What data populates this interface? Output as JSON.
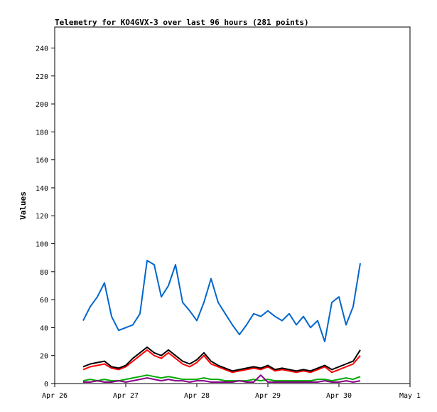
{
  "chart_data": {
    "type": "line",
    "title": "Telemetry for KO4GVX-3 over last 96 hours (281 points)",
    "xlabel": "",
    "ylabel": "Values",
    "xlim": [
      0,
      5
    ],
    "ylim": [
      0,
      255
    ],
    "grid": false,
    "x_ticks": [
      {
        "value": 0,
        "label": "Apr 26"
      },
      {
        "value": 1,
        "label": "Apr 27"
      },
      {
        "value": 2,
        "label": "Apr 28"
      },
      {
        "value": 3,
        "label": "Apr 29"
      },
      {
        "value": 4,
        "label": "Apr 30"
      },
      {
        "value": 5,
        "label": "May 1"
      }
    ],
    "y_ticks": [
      0,
      20,
      40,
      60,
      80,
      100,
      120,
      140,
      160,
      180,
      200,
      220,
      240
    ],
    "series": [
      {
        "color": "#0066cc",
        "x": [
          0.4,
          0.5,
          0.6,
          0.7,
          0.8,
          0.9,
          1.0,
          1.1,
          1.2,
          1.3,
          1.4,
          1.5,
          1.6,
          1.7,
          1.8,
          1.9,
          2.0,
          2.1,
          2.2,
          2.3,
          2.4,
          2.5,
          2.6,
          2.7,
          2.8,
          2.9,
          3.0,
          3.1,
          3.2,
          3.3,
          3.4,
          3.5,
          3.6,
          3.7,
          3.8,
          3.9,
          4.0,
          4.1,
          4.2,
          4.3
        ],
        "y": [
          45,
          55,
          62,
          72,
          48,
          38,
          40,
          42,
          50,
          88,
          85,
          62,
          70,
          85,
          58,
          52,
          45,
          58,
          75,
          58,
          50,
          42,
          35,
          42,
          50,
          48,
          52,
          48,
          45,
          50,
          42,
          48,
          40,
          45,
          30,
          58,
          62,
          42,
          55,
          86
        ]
      },
      {
        "color": "#ff0000",
        "x": [
          0.4,
          0.5,
          0.6,
          0.7,
          0.8,
          0.9,
          1.0,
          1.1,
          1.2,
          1.3,
          1.4,
          1.5,
          1.6,
          1.7,
          1.8,
          1.9,
          2.0,
          2.1,
          2.2,
          2.3,
          2.4,
          2.5,
          2.6,
          2.7,
          2.8,
          2.9,
          3.0,
          3.1,
          3.2,
          3.3,
          3.4,
          3.5,
          3.6,
          3.7,
          3.8,
          3.9,
          4.0,
          4.1,
          4.2,
          4.3
        ],
        "y": [
          10,
          12,
          13,
          14,
          11,
          10,
          12,
          16,
          20,
          24,
          20,
          18,
          22,
          18,
          14,
          12,
          15,
          20,
          14,
          12,
          10,
          8,
          9,
          10,
          11,
          10,
          12,
          9,
          10,
          9,
          8,
          9,
          8,
          10,
          12,
          8,
          10,
          12,
          14,
          20
        ]
      },
      {
        "color": "#000000",
        "x": [
          0.4,
          0.5,
          0.6,
          0.7,
          0.8,
          0.9,
          1.0,
          1.1,
          1.2,
          1.3,
          1.4,
          1.5,
          1.6,
          1.7,
          1.8,
          1.9,
          2.0,
          2.1,
          2.2,
          2.3,
          2.4,
          2.5,
          2.6,
          2.7,
          2.8,
          2.9,
          3.0,
          3.1,
          3.2,
          3.3,
          3.4,
          3.5,
          3.6,
          3.7,
          3.8,
          3.9,
          4.0,
          4.1,
          4.2,
          4.3
        ],
        "y": [
          12,
          14,
          15,
          16,
          12,
          11,
          13,
          18,
          22,
          26,
          22,
          20,
          24,
          20,
          16,
          14,
          17,
          22,
          16,
          13,
          11,
          9,
          10,
          11,
          12,
          11,
          13,
          10,
          11,
          10,
          9,
          10,
          9,
          11,
          13,
          10,
          12,
          14,
          16,
          24
        ]
      },
      {
        "color": "#00aa00",
        "x": [
          0.4,
          0.5,
          0.6,
          0.7,
          0.8,
          0.9,
          1.0,
          1.1,
          1.2,
          1.3,
          1.4,
          1.5,
          1.6,
          1.7,
          1.8,
          1.9,
          2.0,
          2.1,
          2.2,
          2.3,
          2.4,
          2.5,
          2.6,
          2.7,
          2.8,
          2.9,
          3.0,
          3.1,
          3.2,
          3.3,
          3.4,
          3.5,
          3.6,
          3.7,
          3.8,
          3.9,
          4.0,
          4.1,
          4.2,
          4.3
        ],
        "y": [
          2,
          3,
          2,
          3,
          2,
          2,
          3,
          4,
          5,
          6,
          5,
          4,
          5,
          4,
          3,
          3,
          3,
          4,
          3,
          3,
          2,
          2,
          2,
          2,
          3,
          2,
          3,
          2,
          2,
          2,
          2,
          2,
          2,
          3,
          3,
          2,
          3,
          4,
          3,
          5
        ]
      },
      {
        "color": "#880088",
        "x": [
          0.4,
          0.5,
          0.6,
          0.7,
          0.8,
          0.9,
          1.0,
          1.1,
          1.2,
          1.3,
          1.4,
          1.5,
          1.6,
          1.7,
          1.8,
          1.9,
          2.0,
          2.1,
          2.2,
          2.3,
          2.4,
          2.5,
          2.6,
          2.7,
          2.8,
          2.9,
          3.0,
          3.1,
          3.2,
          3.3,
          3.4,
          3.5,
          3.6,
          3.7,
          3.8,
          3.9,
          4.0,
          4.1,
          4.2,
          4.3
        ],
        "y": [
          1,
          1,
          2,
          1,
          1,
          2,
          1,
          2,
          3,
          4,
          3,
          2,
          3,
          2,
          2,
          1,
          2,
          2,
          1,
          1,
          1,
          1,
          2,
          1,
          1,
          6,
          1,
          1,
          1,
          1,
          1,
          1,
          1,
          1,
          2,
          1,
          1,
          2,
          1,
          2
        ]
      }
    ]
  }
}
